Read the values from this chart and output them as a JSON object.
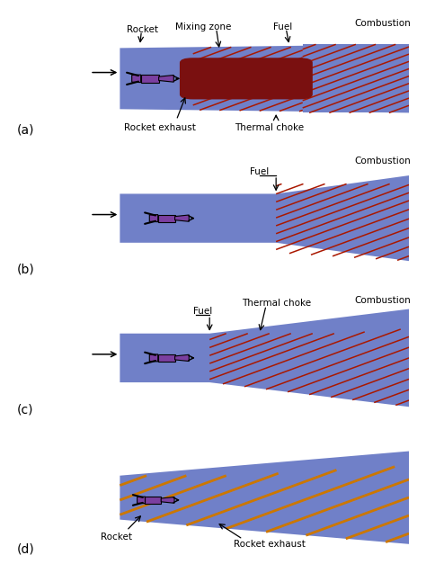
{
  "bg_color": "#ffffff",
  "blue_color": "#7080c8",
  "purple_color": "#7b3fa0",
  "dark_red_color": "#7a1010",
  "red_hatch_color": "#aa1800",
  "orange_color": "#cc7700",
  "panel_labels": [
    "(a)",
    "(b)",
    "(c)",
    "(d)"
  ]
}
